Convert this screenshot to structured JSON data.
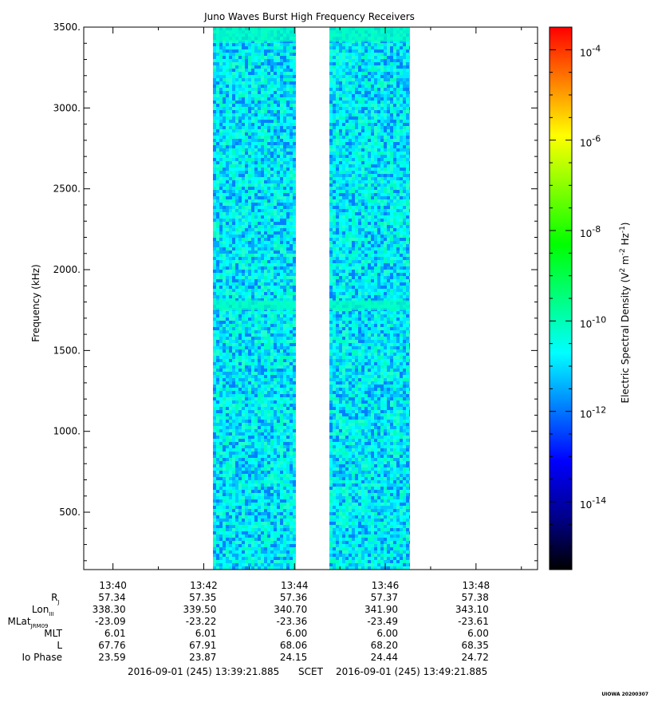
{
  "chart_data": {
    "type": "heatmap",
    "title": "Juno Waves Burst High Frequency Receivers",
    "ylabel": "Frequency (kHz)",
    "ylim": [
      145,
      3500
    ],
    "yticks": [
      500,
      1000,
      1500,
      2000,
      2500,
      3000,
      3500
    ],
    "ytick_labels": [
      "500.",
      "1000.",
      "1500.",
      "2000.",
      "2500.",
      "3000.",
      "3500."
    ],
    "xtick_labels": [
      "13:40",
      "13:42",
      "13:44",
      "13:46",
      "13:48"
    ],
    "x_minutes": [
      40,
      42,
      44,
      46,
      48
    ],
    "x_range_minutes": [
      39.356,
      49.356
    ],
    "data_blocks_minutes": [
      [
        42.21,
        44.03
      ],
      [
        44.77,
        46.54
      ]
    ],
    "features": [
      {
        "freq_range_khz": [
          3410,
          3500
        ],
        "level": "enhanced"
      },
      {
        "freq_range_khz": [
          1750,
          1810
        ],
        "level": "enhanced"
      }
    ],
    "colorbar": {
      "label": "Electric Spectral Density (V",
      "label_sup1": "2",
      "label_mid": " m",
      "label_sup2": "-2",
      "label_mid2": " Hz",
      "label_sup3": "-1",
      "label_end": ")",
      "log_min": -15.5,
      "log_max": -3.5,
      "tick_exponents": [
        -4,
        -6,
        -8,
        -10,
        -12,
        -14
      ],
      "tick_base": "10",
      "tick_sups": [
        "-4",
        "-6",
        "-8",
        "-10",
        "-12",
        "-14"
      ],
      "colors": [
        "#000000",
        "#00008f",
        "#0000ff",
        "#0080ff",
        "#00ffff",
        "#00ff80",
        "#00ff00",
        "#80ff00",
        "#ffff00",
        "#ff8000",
        "#ff0000"
      ]
    },
    "ephemeris": {
      "rows": [
        {
          "label": "R",
          "sub": "J",
          "values": [
            "57.34",
            "57.35",
            "57.36",
            "57.37",
            "57.38"
          ]
        },
        {
          "label": "Lon",
          "sub": "III",
          "values": [
            "338.30",
            "339.50",
            "340.70",
            "341.90",
            "343.10"
          ]
        },
        {
          "label": "MLat",
          "sub": "JRM09",
          "values": [
            "-23.09",
            "-23.22",
            "-23.36",
            "-23.49",
            "-23.61"
          ]
        },
        {
          "label": "MLT",
          "sub": "",
          "values": [
            "6.01",
            "6.01",
            "6.00",
            "6.00",
            "6.00"
          ]
        },
        {
          "label": "L",
          "sub": "",
          "values": [
            "67.76",
            "67.91",
            "68.06",
            "68.20",
            "68.35"
          ]
        },
        {
          "label": "Io Phase",
          "sub": "",
          "values": [
            "23.59",
            "23.87",
            "24.15",
            "24.44",
            "24.72"
          ]
        }
      ]
    },
    "time_start": "2016-09-01 (245) 13:39:21.885",
    "time_mid": "SCET",
    "time_end": "2016-09-01 (245) 13:49:21.885",
    "footer": "UIOWA 20200307"
  }
}
